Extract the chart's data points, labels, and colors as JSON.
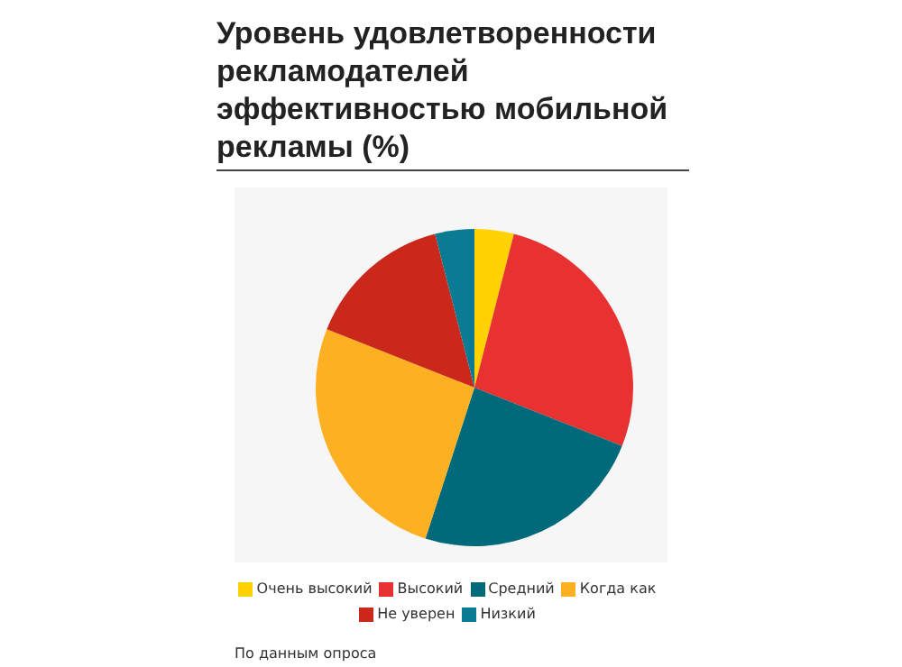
{
  "chart_data": {
    "type": "pie",
    "title": "Уровень удовлетворенности рекламодателей эффективностью мобильной рекламы (%)",
    "categories": [
      "Очень высокий",
      "Высокий",
      "Средний",
      "Когда как",
      "Не уверен",
      "Низкий"
    ],
    "values": [
      4,
      27,
      24,
      26,
      15,
      4
    ],
    "colors": [
      "#ffd200",
      "#e83232",
      "#006a7a",
      "#fdb022",
      "#c9281b",
      "#0b7a93"
    ],
    "legend": "bottom",
    "annotations": [
      "По данным опроса"
    ]
  }
}
